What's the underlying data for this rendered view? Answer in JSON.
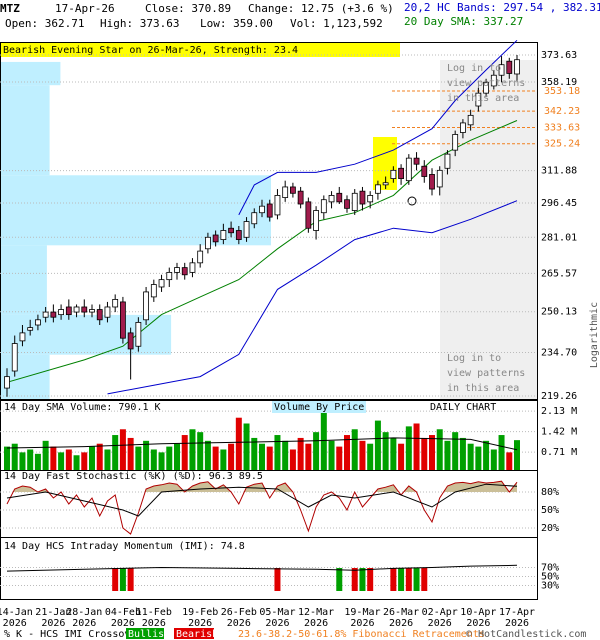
{
  "header": {
    "symbol": "MTZ",
    "date": "17-Apr-26",
    "close": "Close: 370.89",
    "change": "Change: 12.75 (+3.6 %)",
    "open": "Open: 362.71",
    "high": "High: 373.63",
    "low": "Low: 359.00",
    "volume": "Vol: 1,123,592",
    "bands": "20,2 HC Bands: 297.54 , 382.31",
    "sma": "20 Day SMA: 337.27"
  },
  "chart_data": [
    {
      "type": "candlestick",
      "title": "Bearish Evening Star on 26-Mar-26, Strength: 23.4",
      "categories": [
        null,
        "14-Jan",
        null,
        null,
        null,
        null,
        "21-Jan",
        null,
        null,
        null,
        "28-Jan",
        null,
        null,
        null,
        null,
        "04-Feb",
        null,
        null,
        null,
        "11-Feb",
        null,
        null,
        null,
        null,
        null,
        "19-Feb",
        null,
        null,
        null,
        null,
        "26-Feb",
        null,
        null,
        null,
        null,
        "05-Mar",
        null,
        null,
        null,
        null,
        "12-Mar",
        null,
        null,
        null,
        null,
        null,
        "19-Mar",
        null,
        null,
        null,
        null,
        "26-Mar",
        null,
        null,
        null,
        null,
        "02-Apr",
        null,
        null,
        null,
        null,
        "10-Apr",
        null,
        null,
        null,
        null,
        "17-Apr"
      ],
      "year_label": "2026",
      "open": [
        222,
        228,
        239,
        243,
        245,
        248,
        250,
        249,
        252,
        250,
        252,
        250,
        251,
        248,
        252,
        254,
        242,
        237,
        247,
        256,
        260,
        263,
        266,
        268,
        266,
        270,
        276,
        282,
        280,
        285,
        284,
        281,
        287,
        292,
        296,
        291,
        299,
        304,
        302,
        297,
        284,
        292,
        297,
        301,
        298,
        293,
        302,
        297,
        301,
        305,
        308,
        313,
        307,
        318,
        314,
        310,
        304,
        313,
        322,
        331,
        335,
        345,
        352,
        356,
        362,
        370,
        362.71
      ],
      "high": [
        229,
        241,
        245,
        247,
        249,
        252,
        253,
        253,
        255,
        253,
        255,
        253,
        253,
        254,
        257,
        256,
        244,
        248,
        260,
        263,
        265,
        268,
        270,
        270,
        272,
        278,
        283,
        284,
        287,
        288,
        286,
        290,
        294,
        298,
        298,
        303,
        307,
        306,
        304,
        299,
        295,
        300,
        302,
        304,
        300,
        303,
        304,
        302,
        307,
        309,
        314,
        315,
        320,
        321,
        317,
        313,
        314,
        322,
        332,
        338,
        343,
        355,
        360,
        365,
        373,
        372,
        373.63
      ],
      "low": [
        219,
        226,
        237,
        241,
        243,
        246,
        246,
        247,
        247,
        248,
        248,
        248,
        245,
        246,
        250,
        238,
        225,
        235,
        245,
        254,
        258,
        260,
        263,
        263,
        264,
        268,
        274,
        277,
        278,
        281,
        278,
        279,
        285,
        290,
        288,
        289,
        297,
        299,
        294,
        283,
        280,
        289,
        294,
        296,
        292,
        291,
        293,
        294,
        298,
        303,
        306,
        305,
        305,
        312,
        306,
        300,
        300,
        310,
        319,
        328,
        332,
        342,
        350,
        354,
        358,
        360,
        359
      ],
      "close": [
        226,
        238,
        242,
        244,
        247,
        250,
        248,
        251,
        249,
        252,
        250,
        251,
        247,
        252,
        255,
        240,
        236,
        246,
        258,
        261,
        263,
        266,
        268,
        265,
        270,
        275,
        281,
        279,
        284,
        283,
        280,
        288,
        292,
        295,
        290,
        300,
        304,
        301,
        296,
        285,
        293,
        298,
        300,
        297,
        294,
        301,
        296,
        300,
        305,
        306,
        312,
        308,
        318,
        315,
        309,
        303,
        312,
        320,
        330,
        336,
        340,
        352,
        358,
        362,
        368,
        363,
        370.89
      ],
      "up_color": "#ffffff",
      "down_color": "#a01c4c",
      "log_scale": true,
      "ylim": [
        217.9,
        381.3
      ],
      "yticks": [
        373.63,
        358.19,
        311.88,
        296.45,
        281.01,
        265.57,
        250.13,
        {
          "value": 234.7,
          "label": "234.70"
        },
        219.26
      ],
      "y_axis_label": "Logarithmic",
      "fib_levels": [
        353.18,
        342.23,
        333.63,
        325.24
      ],
      "fib_color": "#f08020",
      "lines": [
        {
          "color": "#008000",
          "x": [
            0,
            10,
            15,
            20,
            25,
            30,
            35,
            40,
            45,
            50,
            55,
            60,
            66
          ],
          "values": [
            224,
            232,
            237,
            249,
            256,
            263,
            276,
            288,
            292,
            300,
            317,
            327,
            337.27
          ]
        },
        {
          "color": "#0000cc",
          "x": [
            30,
            32,
            35,
            40,
            45,
            50,
            55,
            58,
            62,
            66
          ],
          "values": [
            291,
            305,
            311,
            311,
            315,
            322,
            333,
            348,
            365,
            382.31
          ]
        },
        {
          "color": "#0000cc",
          "x": [
            13,
            19,
            25,
            30,
            35,
            40,
            45,
            50,
            55,
            60,
            66
          ],
          "values": [
            220,
            223,
            226,
            234,
            259,
            269,
            280,
            285,
            283,
            289,
            297.54
          ]
        }
      ],
      "volume_by_price": {
        "title": "Volume By Price",
        "bins": [
          217.9,
          233.9,
          248.9,
          277.5,
          309.6,
          356.4,
          369.6
        ],
        "values": [
          18,
          63,
          17,
          100,
          18,
          22
        ],
        "color": "#bfefff"
      },
      "pattern_note": [
        "Log in to",
        "view patterns",
        "in this area"
      ]
    },
    {
      "type": "bar",
      "title": "14 Day SMA Volume: 790.1 K",
      "annotation": "DAILY CHART",
      "values": [
        900000,
        1000000,
        700000,
        800000,
        650000,
        1100000,
        900000,
        700000,
        800000,
        600000,
        700000,
        900000,
        1000000,
        800000,
        1300000,
        1500000,
        1200000,
        900000,
        1100000,
        800000,
        700000,
        900000,
        1000000,
        1300000,
        1500000,
        1400000,
        1100000,
        900000,
        800000,
        1000000,
        1900000,
        1700000,
        1200000,
        1000000,
        900000,
        1300000,
        1100000,
        800000,
        1200000,
        1000000,
        1400000,
        2300000,
        1100000,
        900000,
        1300000,
        1500000,
        1100000,
        1000000,
        1800000,
        1400000,
        1200000,
        1000000,
        1600000,
        1700000,
        1200000,
        1300000,
        1500000,
        1100000,
        1400000,
        1200000,
        1000000,
        900000,
        1100000,
        800000,
        1300000,
        700000,
        1123592
      ],
      "up_color": "#00a000",
      "down_color": "#e00000",
      "ylim": [
        90000,
        2340000
      ],
      "yticks": [
        {
          "value": 2130000,
          "label": "2.13 M"
        },
        {
          "value": 1420000,
          "label": "1.42 M"
        },
        {
          "value": 710000,
          "label": "0.71 M"
        }
      ],
      "sma": {
        "color": "#000000",
        "x": [
          0,
          10,
          20,
          30,
          40,
          50,
          60,
          66
        ],
        "values": [
          850000,
          900000,
          1000000,
          1050000,
          1100000,
          1200000,
          1150000,
          790100
        ]
      }
    },
    {
      "type": "line",
      "title": "14 Day Fast Stochastic (%K) (%D): 96.3  89.5",
      "series": [
        {
          "color": "#b00000",
          "values": [
            60,
            85,
            90,
            88,
            80,
            85,
            70,
            80,
            60,
            75,
            55,
            70,
            40,
            65,
            75,
            20,
            10,
            45,
            85,
            90,
            92,
            95,
            93,
            80,
            90,
            95,
            97,
            85,
            92,
            80,
            60,
            88,
            93,
            95,
            70,
            90,
            95,
            80,
            50,
            15,
            55,
            75,
            80,
            70,
            50,
            80,
            55,
            70,
            85,
            88,
            92,
            75,
            90,
            80,
            50,
            30,
            70,
            90,
            95,
            96,
            94,
            97,
            95,
            96,
            98,
            80,
            96.3
          ]
        },
        {
          "color": "#000000",
          "x": [
            0,
            5,
            10,
            15,
            17,
            20,
            25,
            30,
            35,
            39,
            42,
            45,
            50,
            55,
            58,
            62,
            66
          ],
          "values": [
            70,
            80,
            65,
            50,
            40,
            80,
            85,
            88,
            85,
            55,
            75,
            70,
            80,
            55,
            80,
            93,
            89.5
          ]
        }
      ],
      "fill_above": 80,
      "fill_color": "#cbbf98",
      "ylim": [
        5,
        100
      ],
      "yticks": [
        {
          "value": 80,
          "label": "80%"
        },
        {
          "value": 50,
          "label": "50%"
        },
        {
          "value": 20,
          "label": "20%"
        }
      ]
    },
    {
      "type": "line",
      "title": "14 Day HCS Intraday Momentum (IMI): 74.8",
      "series": [
        {
          "color": "#000000",
          "x": [
            0,
            10,
            20,
            30,
            40,
            45,
            50,
            55,
            60,
            66
          ],
          "values": [
            62,
            66,
            70,
            68,
            66,
            64,
            68,
            70,
            73,
            74.8
          ]
        }
      ],
      "ylim": [
        0,
        115
      ],
      "yticks": [
        {
          "value": 70,
          "label": "70%"
        },
        {
          "value": 50,
          "label": "50%"
        },
        {
          "value": 30,
          "label": "30%"
        }
      ],
      "signals": {
        "bullish": [
          15,
          43,
          46,
          51,
          53
        ],
        "bearish": [
          14,
          16,
          35,
          45,
          47,
          50,
          52,
          54
        ],
        "bullish_color": "#00a000",
        "bearish_color": "#e00000"
      }
    }
  ],
  "footer": {
    "crossover_label": "% K - HCS IMI Crossover,",
    "bullish": "Bullish",
    "bearish": "Bearish",
    "fibonacci": "23.6-38.2-50-61.8% Fibonacci Retracements",
    "copyright": "© HotCandlestick.com"
  }
}
